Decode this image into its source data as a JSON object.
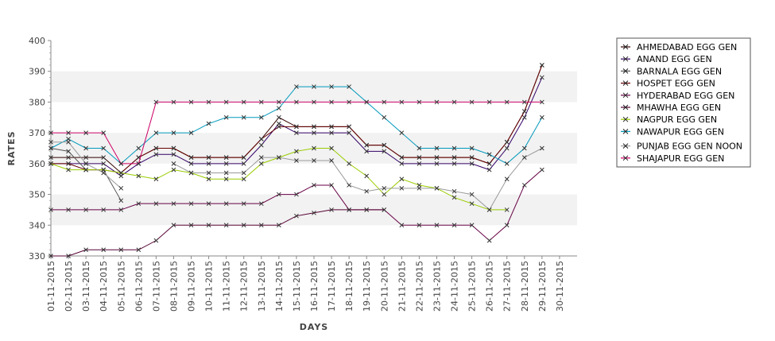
{
  "chart_data": {
    "type": "line",
    "xlabel": "DAYS",
    "ylabel": "RATES",
    "ylim": [
      330,
      400
    ],
    "yticks": [
      330,
      340,
      350,
      360,
      370,
      380,
      390,
      400
    ],
    "grid": "alternating horizontal bands",
    "legend_position": "right",
    "categories": [
      "01-11-2015",
      "02-11-2015",
      "03-11-2015",
      "04-11-2015",
      "05-11-2015",
      "06-11-2015",
      "07-11-2015",
      "08-11-2015",
      "09-11-2015",
      "10-11-2015",
      "11-11-2015",
      "12-11-2015",
      "13-11-2015",
      "14-11-2015",
      "15-11-2015",
      "16-11-2015",
      "17-11-2015",
      "18-11-2015",
      "19-11-2015",
      "20-11-2015",
      "21-11-2015",
      "22-11-2015",
      "23-11-2015",
      "24-11-2015",
      "25-11-2015",
      "26-11-2015",
      "27-11-2015",
      "28-11-2015",
      "29-11-2015",
      "30-11-2015"
    ],
    "series": [
      {
        "name": "AHMEDABAD EGG GEN",
        "color": "#330000",
        "values": [
          362,
          362,
          362,
          362,
          357,
          362,
          365,
          365,
          362,
          362,
          362,
          362,
          368,
          375,
          372,
          372,
          372,
          372,
          366,
          366,
          362,
          362,
          362,
          362,
          362,
          360,
          367,
          377,
          392,
          null
        ]
      },
      {
        "name": "ANAND EGG GEN",
        "color": "#330066",
        "values": [
          360,
          360,
          360,
          360,
          356,
          360,
          363,
          363,
          360,
          360,
          360,
          360,
          366,
          373,
          370,
          370,
          370,
          370,
          364,
          364,
          360,
          360,
          360,
          360,
          360,
          358,
          365,
          375,
          388,
          null
        ]
      },
      {
        "name": "BARNALA EGG GEN",
        "color": "#555555",
        "values": [
          365,
          364,
          358,
          358,
          348,
          null,
          null,
          null,
          null,
          null,
          null,
          null,
          null,
          null,
          null,
          null,
          null,
          null,
          null,
          null,
          null,
          null,
          null,
          null,
          null,
          null,
          null,
          null,
          null,
          null
        ]
      },
      {
        "name": "HOSPET EGG GEN",
        "color": "#660000",
        "values": [
          360,
          360,
          358,
          358,
          357,
          362,
          365,
          365,
          362,
          362,
          362,
          362,
          368,
          372,
          372,
          372,
          372,
          372,
          366,
          366,
          362,
          362,
          362,
          362,
          362,
          360,
          367,
          377,
          392,
          null
        ]
      },
      {
        "name": "HYDERABAD EGG GEN",
        "color": "#660044",
        "values": [
          345,
          345,
          345,
          345,
          345,
          347,
          347,
          347,
          347,
          347,
          347,
          347,
          347,
          350,
          350,
          353,
          353,
          345,
          345,
          345,
          340,
          340,
          340,
          340,
          340,
          335,
          340,
          353,
          358,
          null
        ]
      },
      {
        "name": "MHAWHA EGG GEN",
        "color": "#550033",
        "values": [
          330,
          330,
          332,
          332,
          332,
          332,
          335,
          340,
          340,
          340,
          340,
          340,
          340,
          340,
          343,
          344,
          345,
          345,
          345,
          345,
          null,
          null,
          null,
          null,
          null,
          null,
          null,
          null,
          null,
          null
        ]
      },
      {
        "name": "NAGPUR EGG GEN",
        "color": "#99cc00",
        "values": [
          360,
          358,
          358,
          358,
          357,
          356,
          355,
          358,
          357,
          355,
          355,
          355,
          360,
          362,
          364,
          365,
          365,
          360,
          356,
          350,
          355,
          353,
          352,
          349,
          347,
          345,
          345,
          null,
          null,
          null
        ]
      },
      {
        "name": "NAWAPUR EGG GEN",
        "color": "#0099bb",
        "values": [
          365,
          368,
          365,
          365,
          360,
          365,
          370,
          370,
          370,
          373,
          375,
          375,
          375,
          378,
          385,
          385,
          385,
          385,
          380,
          375,
          370,
          365,
          365,
          365,
          365,
          363,
          360,
          365,
          375,
          null
        ]
      },
      {
        "name": "PUNJAB EGG GEN NOON",
        "color": "#999999",
        "values": [
          367,
          367,
          360,
          357,
          352,
          null,
          null,
          360,
          357,
          357,
          357,
          357,
          362,
          362,
          361,
          361,
          361,
          353,
          351,
          352,
          352,
          352,
          352,
          351,
          350,
          345,
          355,
          362,
          365,
          null
        ]
      },
      {
        "name": "SHAJAPUR EGG GEN",
        "color": "#cc0066",
        "values": [
          370,
          370,
          370,
          370,
          360,
          360,
          380,
          380,
          380,
          380,
          380,
          380,
          380,
          380,
          380,
          380,
          380,
          380,
          380,
          380,
          380,
          380,
          380,
          380,
          380,
          380,
          380,
          380,
          380,
          null
        ]
      }
    ]
  }
}
